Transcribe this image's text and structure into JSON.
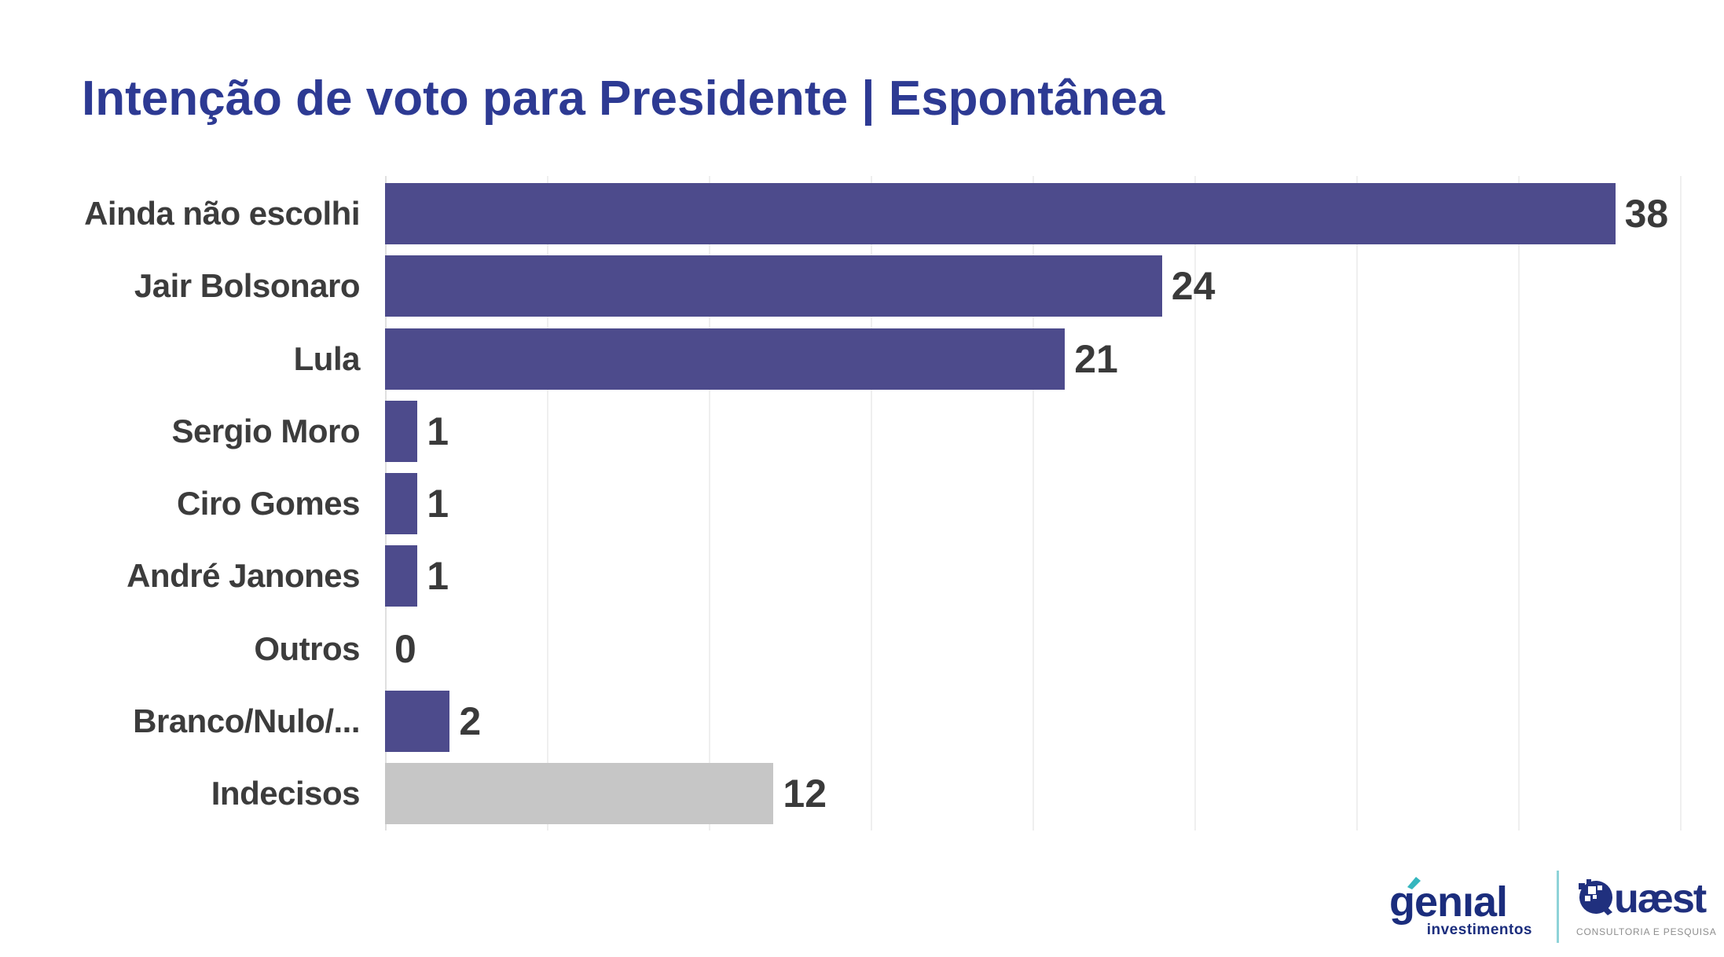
{
  "title": {
    "text": "Intenção de voto para Presidente | Espontânea",
    "color": "#2D3A93"
  },
  "chart_data": {
    "type": "bar",
    "orientation": "horizontal",
    "title": "Intenção de voto para Presidente | Espontânea",
    "categories": [
      "Ainda não escolhi",
      "Jair Bolsonaro",
      "Lula",
      "Sergio Moro",
      "Ciro Gomes",
      "André Janones",
      "Outros",
      "Branco/Nulo/...",
      "Indecisos"
    ],
    "values": [
      38,
      24,
      21,
      1,
      1,
      1,
      0,
      2,
      12
    ],
    "bar_colors": [
      "#4D4B8C",
      "#4D4B8C",
      "#4D4B8C",
      "#4D4B8C",
      "#4D4B8C",
      "#4D4B8C",
      "#4D4B8C",
      "#4D4B8C",
      "#C6C6C6"
    ],
    "value_labels": true,
    "xlabel": "",
    "ylabel": "",
    "xlim": [
      0,
      40
    ],
    "gridline_step": 5,
    "grid": true,
    "legend_position": "none"
  },
  "colors": {
    "bar_primary": "#4D4B8C",
    "bar_undecided": "#C6C6C6",
    "category_label": "#3C3C3C",
    "value_label": "#3A3A3A",
    "gridline": "#EFEFEF",
    "axis": "#E0E0E0",
    "background": "#FFFFFF"
  },
  "footer": {
    "genial": {
      "wordmark": "genıal",
      "subtitle": "investimentos",
      "navy": "#1B2D7D",
      "teal": "#35B6BE"
    },
    "divider_color": "#8ED3D8",
    "quaest": {
      "wordmark_rest": "uæst",
      "tagline": "CONSULTORIA E PESQUISA",
      "navy": "#20307E",
      "tagline_color": "#8E8E8E"
    }
  }
}
